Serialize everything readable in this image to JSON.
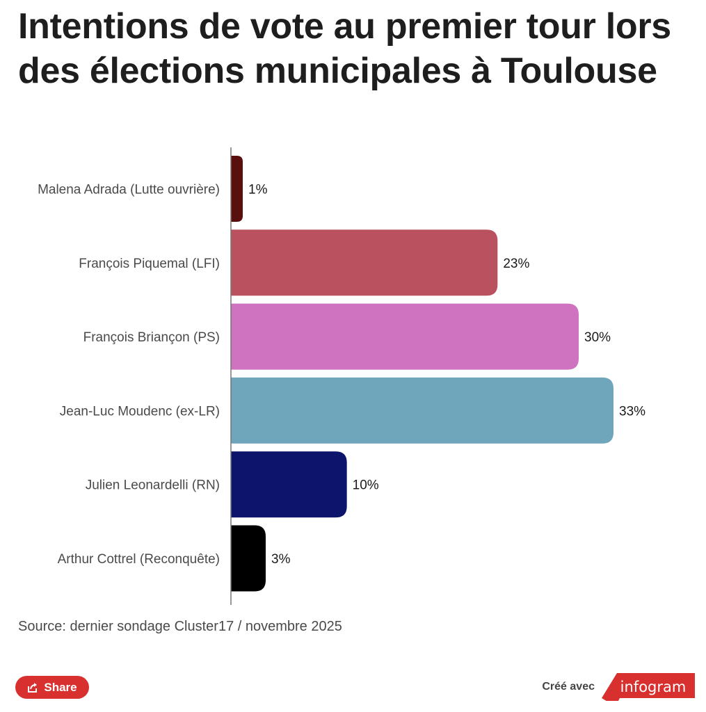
{
  "title": "Intentions de vote au premier tour lors des élections municipales à Toulouse",
  "source": "Source: dernier sondage Cluster17 / novembre 2025",
  "share_label": "Share",
  "credit_text": "Créé avec",
  "brand_label": "infogram",
  "colors": {
    "brand": "#d8302f"
  },
  "chart_data": {
    "type": "bar",
    "orientation": "horizontal",
    "categories": [
      "Malena Adrada (Lutte ouvrière)",
      "François Piquemal (LFI)",
      "François Briançon (PS)",
      "Jean-Luc Moudenc (ex-LR)",
      "Julien Leonardelli (RN)",
      "Arthur Cottrel (Reconquête)"
    ],
    "values": [
      1,
      23,
      30,
      33,
      10,
      3
    ],
    "value_labels": [
      "1%",
      "23%",
      "30%",
      "33%",
      "10%",
      "3%"
    ],
    "colors": [
      "#5a0f0f",
      "#b9525e",
      "#cf72c0",
      "#6fa6bc",
      "#0c146b",
      "#000000"
    ],
    "xlim": [
      0,
      33
    ],
    "grid": false,
    "legend": "none"
  }
}
